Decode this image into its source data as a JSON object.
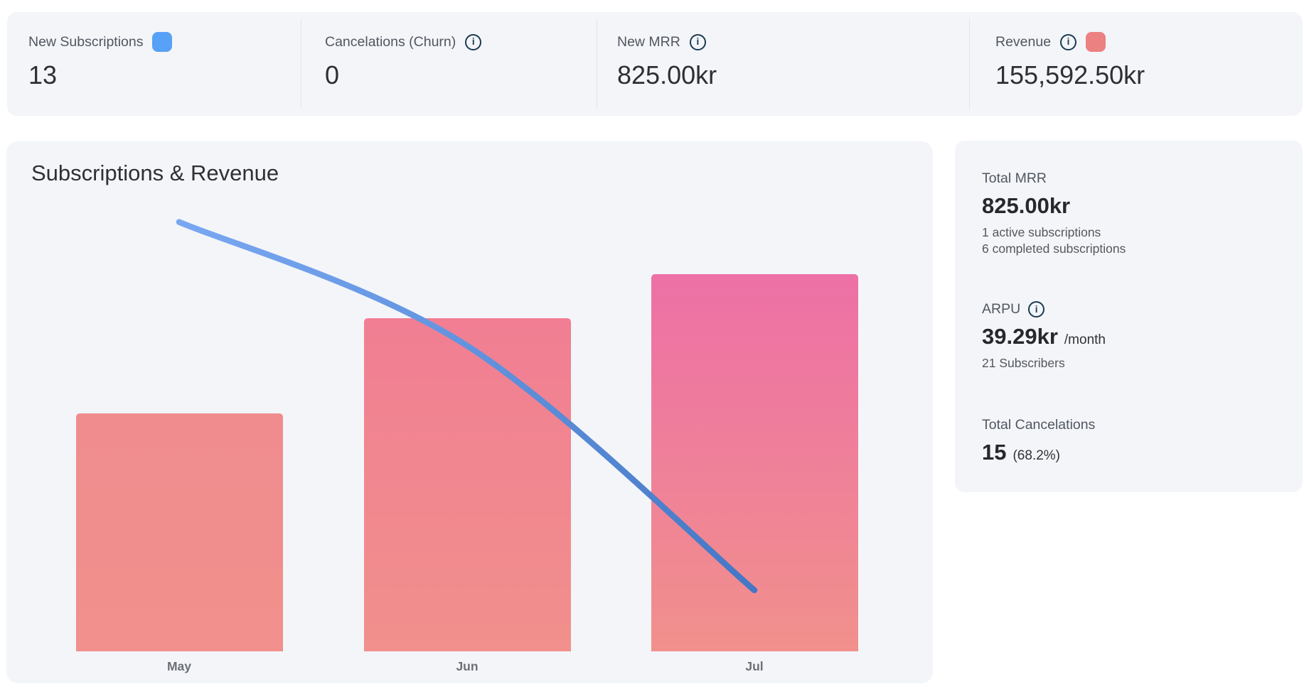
{
  "stats": {
    "items": [
      {
        "label": "New Subscriptions",
        "value": "13",
        "swatch": "#57a1f6"
      },
      {
        "label": "Cancelations (Churn)",
        "value": "0",
        "info": true
      },
      {
        "label": "New MRR",
        "value": "825.00kr",
        "info": true
      },
      {
        "label": "Revenue",
        "value": "155,592.50kr",
        "info": true,
        "swatch": "#ec8181"
      }
    ]
  },
  "chart_data": {
    "type": "combo",
    "title": "Subscriptions & Revenue",
    "categories": [
      "May",
      "Jun",
      "Jul"
    ],
    "series": [
      {
        "name": "Revenue",
        "type": "bar",
        "values_relative": [
          0.631,
          0.883,
          1.0
        ],
        "note": "no y-axis labels or gridlines shown; values are bar heights relative to the tallest (Jul) bar",
        "bar_top_colors": [
          "#f08c8e",
          "#f17e93",
          "#ed70a6"
        ],
        "bar_bottom_color": "#f1908c"
      },
      {
        "name": "New Subscriptions",
        "type": "line",
        "values_relative": [
          0.92,
          0.655,
          0.131
        ],
        "note": "declining smooth curve; values relative to plot height, no axis labels shown",
        "line_gradient": [
          "#79a7f1",
          "#4377c4"
        ]
      }
    ],
    "axes": {
      "x_visible": true,
      "y_visible": false,
      "grid": false
    },
    "legend": "swatches shown in top stat cards: blue = New Subscriptions, salmon = Revenue"
  },
  "sidebar": {
    "total_mrr": {
      "label": "Total MRR",
      "value": "825.00kr",
      "sub1": "1 active subscriptions",
      "sub2": "6 completed subscriptions"
    },
    "arpu": {
      "label": "ARPU",
      "value": "39.29kr",
      "suffix": "/month",
      "sub": "21 Subscribers"
    },
    "cancelations": {
      "label": "Total Cancelations",
      "value": "15",
      "percent": "(68.2%)"
    }
  },
  "colors": {
    "card_background": "#f3f5f9",
    "page_background": "#ffffff",
    "divider": "#e3e5ea",
    "label_text": "#515760",
    "value_text": "#2d2f33",
    "info_icon": "#1b3a50",
    "month_label": "#6c7076",
    "swatch_blue": "#57a1f6",
    "swatch_salmon": "#ec8181"
  }
}
